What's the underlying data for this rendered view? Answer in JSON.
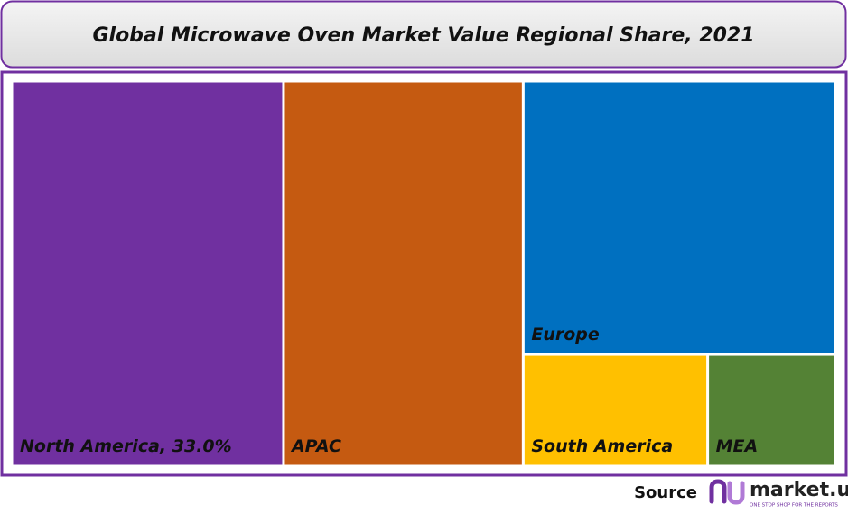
{
  "chart_data": {
    "type": "treemap",
    "title": "Global Microwave Oven Market Value Regional Share, 2021",
    "categories": [
      "North America",
      "APAC",
      "Europe",
      "South America",
      "MEA"
    ],
    "values": [
      33.0,
      29.1,
      26.9,
      6.5,
      4.5
    ],
    "value_labels": [
      "33.0%",
      null,
      null,
      null,
      null
    ],
    "colors": [
      "#7030a0",
      "#c55a11",
      "#0070c0",
      "#ffc000",
      "#548235"
    ]
  },
  "footer": {
    "source": "Source",
    "logo": "market.us",
    "tagline": "ONE STOP SHOP FOR THE REPORTS"
  }
}
